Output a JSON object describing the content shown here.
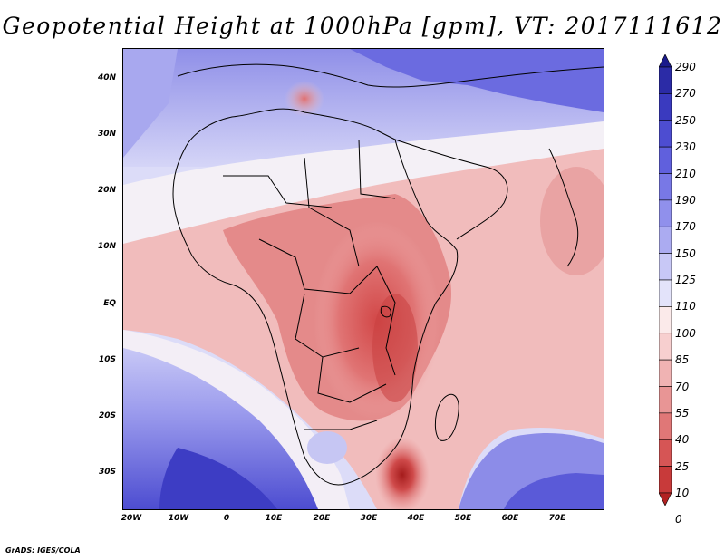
{
  "title": "Geopotential Height at 1000hPa [gpm], VT: 2017111612",
  "credit": "GrADS: IGES/COLA",
  "lat_labels": [
    "40N",
    "30N",
    "20N",
    "10N",
    "EQ",
    "10S",
    "20S",
    "30S"
  ],
  "lon_labels": [
    "20W",
    "10W",
    "0",
    "10E",
    "20E",
    "30E",
    "40E",
    "50E",
    "60E",
    "70E"
  ],
  "colorbar": {
    "labels": [
      "290",
      "270",
      "250",
      "230",
      "210",
      "190",
      "170",
      "150",
      "125",
      "110",
      "100",
      "85",
      "70",
      "55",
      "40",
      "25",
      "10",
      "0"
    ],
    "colors": [
      "#1a1a8c",
      "#2b2ba6",
      "#3a3abf",
      "#4d4dd1",
      "#6060dd",
      "#7878e6",
      "#9090ec",
      "#ababf1",
      "#c8c8f6",
      "#e3e3fa",
      "#fbeaea",
      "#f7cfcf",
      "#f0b3b3",
      "#e89595",
      "#e07777",
      "#d65555",
      "#c83a3a",
      "#b22222"
    ]
  },
  "map": {
    "variable": "Geopotential Height",
    "level": "1000hPa",
    "units": "gpm",
    "valid_time": "2017111612"
  }
}
